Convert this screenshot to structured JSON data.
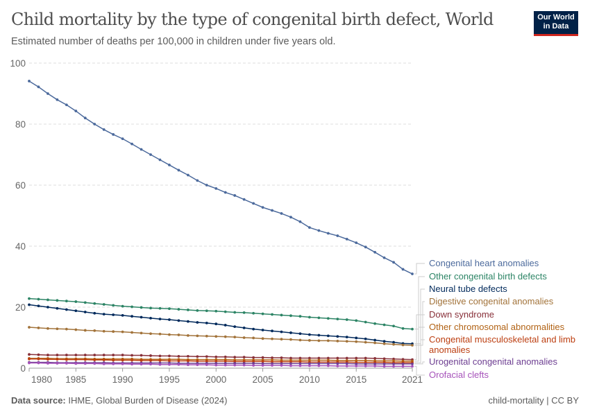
{
  "header": {
    "title": "Child mortality by the type of congenital birth defect, World",
    "subtitle": "Estimated number of deaths per 100,000 in children under five years old.",
    "logo_line1": "Our World",
    "logo_line2": "in Data"
  },
  "footer": {
    "source_label": "Data source:",
    "source": "IHME, Global Burden of Disease (2024)",
    "right": "child-mortality | CC BY"
  },
  "chart_data": {
    "type": "line",
    "title": "Child mortality by the type of congenital birth defect, World",
    "ylabel": "",
    "xlabel": "",
    "ylim": [
      0,
      100
    ],
    "xlim": [
      1980,
      2021
    ],
    "yticks": [
      0,
      20,
      40,
      60,
      80,
      100
    ],
    "xticks": [
      1980,
      1985,
      1990,
      1995,
      2000,
      2005,
      2010,
      2015,
      2021
    ],
    "grid": "horizontal dashed",
    "legend": "right, line-end labels",
    "x_start": 1980,
    "series": [
      {
        "name": "Congenital heart anomalies",
        "color": "#4c6a9c",
        "values": [
          94.1,
          92.2,
          90.0,
          88.0,
          86.3,
          84.3,
          82.0,
          80.0,
          78.2,
          76.6,
          75.2,
          73.5,
          71.7,
          70.0,
          68.3,
          66.6,
          64.9,
          63.3,
          61.5,
          60.0,
          58.9,
          57.6,
          56.6,
          55.3,
          54.0,
          52.7,
          51.7,
          50.7,
          49.5,
          48.0,
          46.1,
          45.1,
          44.2,
          43.4,
          42.3,
          41.1,
          39.7,
          38.0,
          36.2,
          34.7,
          32.4,
          30.9
        ]
      },
      {
        "name": "Other congenital birth defects",
        "color": "#2c8465",
        "values": [
          22.8,
          22.6,
          22.4,
          22.2,
          22.0,
          21.8,
          21.5,
          21.2,
          20.9,
          20.6,
          20.3,
          20.1,
          19.9,
          19.7,
          19.6,
          19.5,
          19.3,
          19.1,
          18.9,
          18.8,
          18.7,
          18.5,
          18.3,
          18.2,
          18.0,
          17.8,
          17.6,
          17.4,
          17.2,
          17.0,
          16.7,
          16.5,
          16.3,
          16.1,
          15.9,
          15.6,
          15.1,
          14.6,
          14.2,
          13.8,
          13.0,
          12.8
        ]
      },
      {
        "name": "Neural tube defects",
        "color": "#00295b",
        "values": [
          20.8,
          20.4,
          20.0,
          19.6,
          19.2,
          18.8,
          18.4,
          18.0,
          17.7,
          17.5,
          17.3,
          17.0,
          16.7,
          16.4,
          16.1,
          15.9,
          15.6,
          15.3,
          15.0,
          14.8,
          14.5,
          14.1,
          13.6,
          13.2,
          12.8,
          12.5,
          12.2,
          11.9,
          11.6,
          11.3,
          11.0,
          10.8,
          10.6,
          10.4,
          10.2,
          9.9,
          9.6,
          9.2,
          8.8,
          8.5,
          8.1,
          8.0
        ]
      },
      {
        "name": "Digestive congenital anomalies",
        "color": "#a2733a",
        "values": [
          13.4,
          13.2,
          13.0,
          12.9,
          12.8,
          12.6,
          12.4,
          12.3,
          12.1,
          12.0,
          11.9,
          11.7,
          11.5,
          11.3,
          11.2,
          11.0,
          10.9,
          10.7,
          10.6,
          10.5,
          10.4,
          10.3,
          10.2,
          10.0,
          9.9,
          9.7,
          9.6,
          9.5,
          9.4,
          9.2,
          9.1,
          9.0,
          9.0,
          8.9,
          8.8,
          8.7,
          8.5,
          8.3,
          8.0,
          7.8,
          7.6,
          7.5
        ]
      },
      {
        "name": "Down syndrome",
        "color": "#883039",
        "values": [
          4.5,
          4.4,
          4.3,
          4.3,
          4.3,
          4.3,
          4.3,
          4.3,
          4.3,
          4.3,
          4.3,
          4.2,
          4.2,
          4.1,
          4.0,
          4.0,
          3.9,
          3.9,
          3.8,
          3.8,
          3.7,
          3.7,
          3.6,
          3.6,
          3.5,
          3.5,
          3.4,
          3.4,
          3.3,
          3.3,
          3.3,
          3.3,
          3.3,
          3.3,
          3.3,
          3.3,
          3.3,
          3.2,
          3.1,
          3.0,
          2.9,
          2.8
        ]
      },
      {
        "name": "Other chromosomal abnormalities",
        "color": "#b16214",
        "values": [
          3.2,
          3.2,
          3.2,
          3.1,
          3.1,
          3.1,
          3.1,
          3.0,
          3.0,
          3.0,
          3.0,
          3.0,
          2.9,
          2.9,
          2.9,
          2.9,
          2.9,
          2.8,
          2.8,
          2.8,
          2.8,
          2.8,
          2.7,
          2.7,
          2.7,
          2.7,
          2.7,
          2.6,
          2.6,
          2.6,
          2.6,
          2.6,
          2.6,
          2.5,
          2.5,
          2.5,
          2.5,
          2.4,
          2.4,
          2.4,
          2.3,
          2.3
        ]
      },
      {
        "name": "Congenital musculoskeletal and limb anomalies",
        "label_lines": [
          "Congenital musculoskeletal and limb",
          "anomalies"
        ],
        "color": "#bc3e10",
        "values": [
          3.0,
          3.0,
          2.9,
          2.9,
          2.8,
          2.8,
          2.8,
          2.7,
          2.7,
          2.6,
          2.6,
          2.6,
          2.5,
          2.5,
          2.5,
          2.4,
          2.4,
          2.4,
          2.3,
          2.3,
          2.3,
          2.3,
          2.2,
          2.2,
          2.2,
          2.2,
          2.1,
          2.1,
          2.1,
          2.1,
          2.0,
          2.0,
          2.0,
          2.0,
          2.0,
          1.9,
          1.9,
          1.9,
          1.9,
          1.8,
          1.8,
          1.8
        ]
      },
      {
        "name": "Urogenital congenital anomalies",
        "color": "#6d3e91",
        "values": [
          1.9,
          1.9,
          1.9,
          1.8,
          1.8,
          1.8,
          1.8,
          1.8,
          1.8,
          1.7,
          1.7,
          1.7,
          1.7,
          1.7,
          1.7,
          1.7,
          1.6,
          1.6,
          1.6,
          1.6,
          1.6,
          1.6,
          1.6,
          1.6,
          1.6,
          1.5,
          1.5,
          1.5,
          1.5,
          1.5,
          1.5,
          1.5,
          1.5,
          1.5,
          1.5,
          1.4,
          1.4,
          1.4,
          1.4,
          1.4,
          1.4,
          1.4
        ]
      },
      {
        "name": "Orofacial clefts",
        "color": "#a652ba",
        "values": [
          1.7,
          1.7,
          1.6,
          1.6,
          1.6,
          1.5,
          1.5,
          1.5,
          1.4,
          1.4,
          1.4,
          1.3,
          1.3,
          1.3,
          1.2,
          1.2,
          1.2,
          1.1,
          1.1,
          1.1,
          1.0,
          1.0,
          1.0,
          1.0,
          0.9,
          0.9,
          0.9,
          0.9,
          0.8,
          0.8,
          0.8,
          0.8,
          0.8,
          0.7,
          0.7,
          0.7,
          0.7,
          0.7,
          0.6,
          0.6,
          0.6,
          0.6
        ]
      }
    ]
  }
}
